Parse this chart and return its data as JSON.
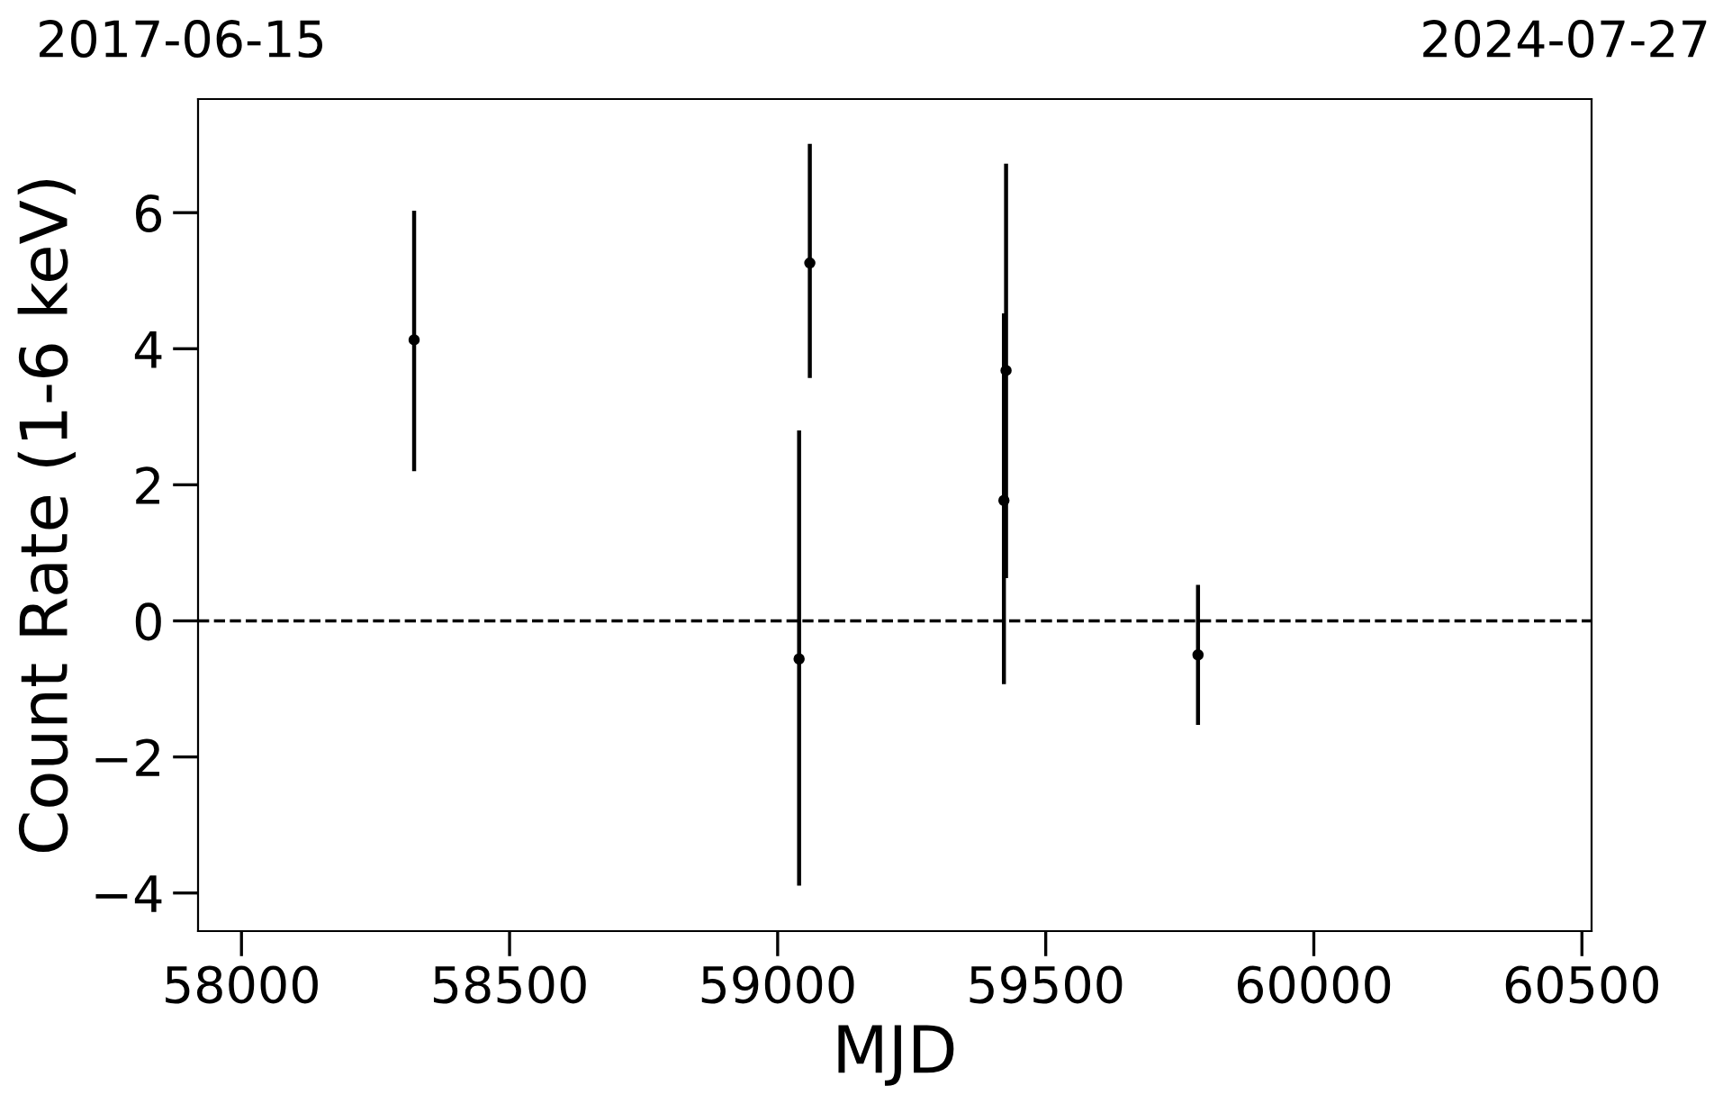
{
  "chart_data": {
    "type": "scatter",
    "xlabel": "MJD",
    "ylabel": "Count Rate (1-6 keV)",
    "x": [
      58322,
      59060,
      59040,
      59422,
      59426,
      59784
    ],
    "series": [
      {
        "color": "#000000",
        "values": [
          4.13,
          5.26,
          -0.56,
          1.77,
          3.68,
          -0.5
        ],
        "errors": [
          [
            2.2,
            6.03
          ],
          [
            3.57,
            7.01
          ],
          [
            -3.89,
            2.8
          ],
          [
            -0.93,
            4.52
          ],
          [
            0.63,
            6.72
          ],
          [
            -1.53,
            0.53
          ]
        ]
      }
    ],
    "xlim": [
      57919,
      60518
    ],
    "ylim": [
      -4.56,
      7.67
    ],
    "xticks": [
      58000,
      58500,
      59000,
      59500,
      60000,
      60500
    ],
    "yticks": [
      {
        "value": -4,
        "label": "−4"
      },
      {
        "value": -2,
        "label": "−2"
      },
      0,
      2,
      4,
      6
    ],
    "ref_lines": [
      {
        "axis": "y",
        "value": 0,
        "color": "#000000",
        "line_style": "dashed"
      }
    ],
    "annotations": [
      "2017-06-15",
      "2024-07-27"
    ],
    "marker": "circle",
    "grid": false,
    "legend": false
  }
}
